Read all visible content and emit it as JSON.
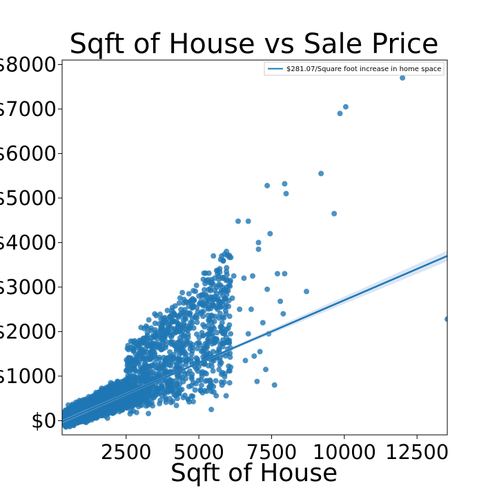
{
  "chart_data": {
    "type": "scatter",
    "title": "Sqft of House vs Sale Price",
    "xlabel": "Sqft of House",
    "ylabel": "",
    "xlim": [
      300,
      13540
    ],
    "ylim": [
      -320,
      8100
    ],
    "x_ticks": [
      2500,
      5000,
      7500,
      10000,
      12500
    ],
    "x_tick_labels": [
      "2500",
      "5000",
      "7500",
      "10000",
      "12500"
    ],
    "y_ticks": [
      0,
      1000,
      2000,
      3000,
      4000,
      5000,
      6000,
      7000,
      8000
    ],
    "y_tick_labels": [
      "$0",
      "$1000",
      "$2000",
      "$3000",
      "$4000",
      "$5000",
      "$6000",
      "$7000",
      "$8000"
    ],
    "grid": false,
    "legend_position": "top-right",
    "colors": {
      "points": "#1f77b4",
      "line": "#1f77b4",
      "band": "#aec7e8"
    },
    "series": [
      {
        "name": "$281.07/Square foot increase in home space",
        "kind": "regression_line",
        "slope_per_sqft": 0.28107,
        "x": [
          300,
          13540
        ],
        "y": [
          -22,
          3700
        ]
      },
      {
        "name": "",
        "kind": "scatter_outliers",
        "points": [
          [
            12000,
            7700
          ],
          [
            10050,
            7050
          ],
          [
            9850,
            6900
          ],
          [
            9200,
            5550
          ],
          [
            9650,
            4650
          ],
          [
            7950,
            5320
          ],
          [
            8000,
            5100
          ],
          [
            7350,
            5280
          ],
          [
            13540,
            2280
          ],
          [
            8700,
            2900
          ],
          [
            7800,
            2680
          ],
          [
            7900,
            2400
          ],
          [
            7450,
            4200
          ],
          [
            7050,
            4000
          ],
          [
            7050,
            3850
          ],
          [
            6350,
            4480
          ],
          [
            6700,
            4480
          ],
          [
            7950,
            3300
          ],
          [
            7700,
            3300
          ],
          [
            6850,
            3250
          ],
          [
            7350,
            2950
          ],
          [
            6550,
            3200
          ],
          [
            5950,
            3800
          ],
          [
            5500,
            3700
          ],
          [
            5750,
            3620
          ],
          [
            6700,
            1950
          ],
          [
            7400,
            1950
          ],
          [
            7100,
            1550
          ],
          [
            6900,
            1450
          ],
          [
            7300,
            1150
          ],
          [
            7000,
            880
          ],
          [
            7600,
            800
          ],
          [
            6400,
            2500
          ],
          [
            6800,
            2500
          ],
          [
            7200,
            2200
          ],
          [
            6150,
            2750
          ],
          [
            6200,
            3250
          ],
          [
            6050,
            2150
          ],
          [
            5800,
            2200
          ],
          [
            6600,
            1350
          ]
        ]
      },
      {
        "name": "",
        "kind": "scatter_bulk",
        "point_count": 4500,
        "x_range": [
          370,
          5000
        ],
        "price_per_sqft_range": [
          150,
          400
        ],
        "trend_slope_per_sqft": 0.28107
      }
    ]
  }
}
